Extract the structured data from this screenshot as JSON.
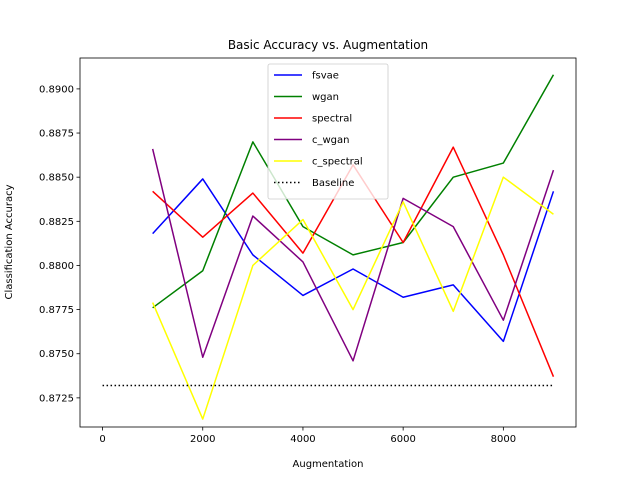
{
  "chart_data": {
    "type": "line",
    "title": "Basic Accuracy vs. Augmentation",
    "xlabel": "Augmentation",
    "ylabel": "Classification Accuracy",
    "xlim": [
      -450,
      9450
    ],
    "ylim": [
      0.87085,
      0.89175
    ],
    "xticks": [
      0,
      2000,
      4000,
      6000,
      8000
    ],
    "yticks": [
      0.8725,
      0.875,
      0.8775,
      0.88,
      0.8825,
      0.885,
      0.8875,
      0.89
    ],
    "ytick_labels": [
      "0.8725",
      "0.8750",
      "0.8775",
      "0.8800",
      "0.8825",
      "0.8850",
      "0.8875",
      "0.8900"
    ],
    "grid": false,
    "legend_position": "top-center",
    "series": [
      {
        "name": "fsvae",
        "color": "#0000ff",
        "x": [
          1000,
          2000,
          3000,
          4000,
          5000,
          6000,
          7000,
          8000,
          9000
        ],
        "values": [
          0.8818,
          0.8849,
          0.8806,
          0.8783,
          0.8798,
          0.8782,
          0.8789,
          0.8757,
          0.8842
        ]
      },
      {
        "name": "wgan",
        "color": "#008000",
        "x": [
          1000,
          2000,
          3000,
          4000,
          5000,
          6000,
          7000,
          8000,
          9000
        ],
        "values": [
          0.8776,
          0.8797,
          0.887,
          0.8822,
          0.8806,
          0.8813,
          0.885,
          0.8858,
          0.8908
        ]
      },
      {
        "name": "spectral",
        "color": "#ff0000",
        "x": [
          1000,
          2000,
          3000,
          4000,
          5000,
          6000,
          7000,
          8000,
          9000
        ],
        "values": [
          0.8842,
          0.8816,
          0.8841,
          0.8807,
          0.8857,
          0.8813,
          0.8867,
          0.8806,
          0.8737
        ]
      },
      {
        "name": "c_wgan",
        "color": "#800080",
        "x": [
          1000,
          2000,
          3000,
          4000,
          5000,
          6000,
          7000,
          8000,
          9000
        ],
        "values": [
          0.8866,
          0.8748,
          0.8828,
          0.8802,
          0.8746,
          0.8838,
          0.8822,
          0.8769,
          0.8854
        ]
      },
      {
        "name": "c_spectral",
        "color": "#ffff00",
        "x": [
          1000,
          2000,
          3000,
          4000,
          5000,
          6000,
          7000,
          8000,
          9000
        ],
        "values": [
          0.8779,
          0.8713,
          0.88,
          0.8826,
          0.8775,
          0.8836,
          0.8774,
          0.885,
          0.8829
        ]
      },
      {
        "name": "Baseline",
        "color": "#000000",
        "style": "dotted",
        "x": [
          0,
          9000
        ],
        "values": [
          0.8732,
          0.8732
        ]
      }
    ]
  }
}
